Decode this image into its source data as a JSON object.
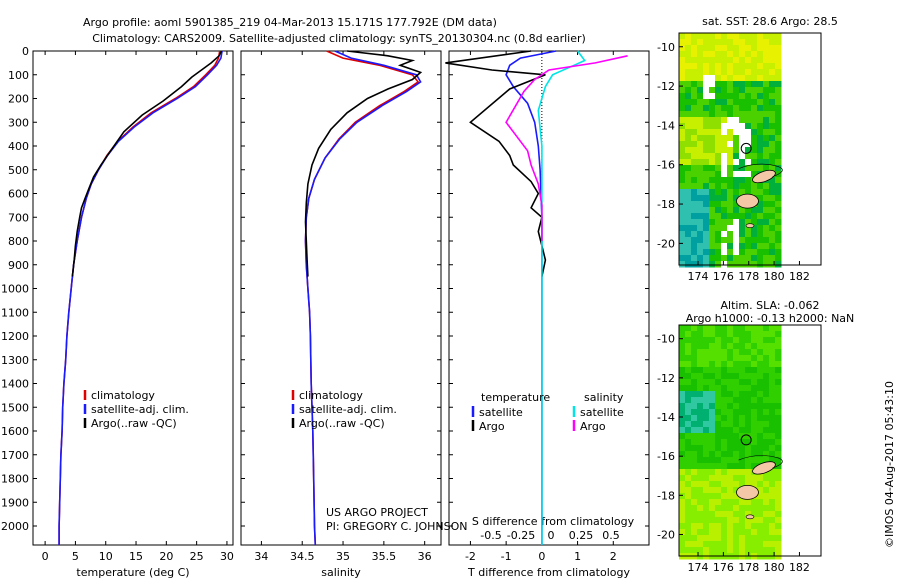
{
  "title_line1": "Argo profile: aoml 5901385_219 04-Mar-2013 15.171S 177.792E (DM data)",
  "title_line2": "Climatology: CARS2009. Satellite-adjusted climatology: synTS_20130304.nc (0.8d earlier)",
  "credit_line1": "US ARGO PROJECT",
  "credit_line2": "PI: GREGORY C. JOHNSON",
  "watermark": "©IMOS 04-Aug-2017 05:43:10",
  "colors": {
    "climatology": "#e00000",
    "satellite": "#1a1aff",
    "argo": "#000000",
    "salinity_sat": "#00e5e5",
    "salinity_argo": "#ff00ff",
    "land": "#f4c8a6"
  },
  "chart_data": [
    {
      "id": "temperature",
      "type": "line",
      "xlabel": "temperature (deg C)",
      "ylabel": "",
      "xlim": [
        -2,
        31
      ],
      "ylim": [
        2080,
        0
      ],
      "xticks": [
        0,
        5,
        10,
        15,
        20,
        25,
        30
      ],
      "yticks": [
        0,
        100,
        200,
        300,
        400,
        500,
        600,
        700,
        800,
        900,
        1000,
        1100,
        1200,
        1300,
        1400,
        1500,
        1600,
        1700,
        1800,
        1900,
        2000
      ],
      "legend": [
        "climatology",
        "satellite-adj. clim.",
        "Argo(..raw -QC)"
      ],
      "legend_position": "lower-center",
      "series": [
        {
          "name": "climatology",
          "color": "#e00000",
          "points": [
            [
              28.8,
              0
            ],
            [
              28.6,
              30
            ],
            [
              28.0,
              60
            ],
            [
              26.5,
              100
            ],
            [
              24.5,
              150
            ],
            [
              21.5,
              200
            ],
            [
              17.5,
              260
            ],
            [
              14.5,
              320
            ],
            [
              12.0,
              380
            ],
            [
              10.2,
              440
            ],
            [
              8.8,
              500
            ],
            [
              7.6,
              560
            ],
            [
              6.8,
              620
            ],
            [
              6.0,
              700
            ],
            [
              5.3,
              800
            ],
            [
              4.7,
              900
            ],
            [
              4.3,
              1000
            ],
            [
              3.9,
              1100
            ],
            [
              3.6,
              1200
            ],
            [
              3.4,
              1300
            ],
            [
              3.1,
              1400
            ],
            [
              2.9,
              1500
            ],
            [
              2.8,
              1600
            ],
            [
              2.6,
              1700
            ],
            [
              2.5,
              1800
            ],
            [
              2.4,
              1900
            ],
            [
              2.3,
              2000
            ],
            [
              2.3,
              2080
            ]
          ]
        },
        {
          "name": "satellite-adj. clim.",
          "color": "#1a1aff",
          "points": [
            [
              29.2,
              0
            ],
            [
              29.0,
              30
            ],
            [
              28.3,
              60
            ],
            [
              26.8,
              100
            ],
            [
              24.8,
              150
            ],
            [
              21.8,
              200
            ],
            [
              17.8,
              260
            ],
            [
              14.7,
              320
            ],
            [
              12.1,
              380
            ],
            [
              10.3,
              440
            ],
            [
              8.8,
              500
            ],
            [
              7.6,
              560
            ],
            [
              6.8,
              620
            ],
            [
              6.0,
              700
            ],
            [
              5.3,
              800
            ],
            [
              4.7,
              900
            ],
            [
              4.3,
              1000
            ],
            [
              3.9,
              1100
            ],
            [
              3.6,
              1200
            ],
            [
              3.4,
              1300
            ],
            [
              3.1,
              1400
            ],
            [
              2.9,
              1500
            ],
            [
              2.8,
              1600
            ],
            [
              2.6,
              1700
            ],
            [
              2.5,
              1800
            ],
            [
              2.4,
              1900
            ],
            [
              2.3,
              2000
            ],
            [
              2.3,
              2080
            ]
          ]
        },
        {
          "name": "Argo(..raw -QC)",
          "color": "#000000",
          "points": [
            [
              29.1,
              0
            ],
            [
              28.7,
              20
            ],
            [
              27.4,
              50
            ],
            [
              25.8,
              80
            ],
            [
              24.2,
              110
            ],
            [
              22.5,
              150
            ],
            [
              19.5,
              210
            ],
            [
              16.0,
              270
            ],
            [
              13.0,
              340
            ],
            [
              10.8,
              420
            ],
            [
              9.2,
              480
            ],
            [
              8.0,
              530
            ],
            [
              7.2,
              580
            ],
            [
              6.6,
              620
            ],
            [
              6.0,
              660
            ],
            [
              5.7,
              700
            ],
            [
              5.3,
              760
            ],
            [
              5.0,
              820
            ],
            [
              4.8,
              880
            ],
            [
              4.5,
              950
            ]
          ]
        }
      ]
    },
    {
      "id": "salinity",
      "type": "line",
      "xlabel": "salinity",
      "ylabel": "",
      "xlim": [
        33.75,
        36.2
      ],
      "ylim": [
        2080,
        0
      ],
      "xticks": [
        34,
        34.5,
        35,
        35.5,
        36
      ],
      "legend": [
        "climatology",
        "satellite-adj. clim.",
        "Argo(..raw -QC)"
      ],
      "legend_position": "lower-center",
      "series": [
        {
          "name": "climatology",
          "color": "#e00000",
          "points": [
            [
              34.8,
              0
            ],
            [
              35.0,
              30
            ],
            [
              35.45,
              60
            ],
            [
              35.85,
              100
            ],
            [
              35.92,
              130
            ],
            [
              35.75,
              170
            ],
            [
              35.45,
              230
            ],
            [
              35.15,
              300
            ],
            [
              34.95,
              370
            ],
            [
              34.78,
              450
            ],
            [
              34.65,
              540
            ],
            [
              34.58,
              620
            ],
            [
              34.55,
              700
            ],
            [
              34.54,
              800
            ],
            [
              34.55,
              900
            ],
            [
              34.57,
              1000
            ],
            [
              34.59,
              1100
            ],
            [
              34.6,
              1200
            ],
            [
              34.61,
              1400
            ],
            [
              34.63,
              1600
            ],
            [
              34.64,
              1800
            ],
            [
              34.65,
              2000
            ],
            [
              34.66,
              2080
            ]
          ]
        },
        {
          "name": "satellite-adj. clim.",
          "color": "#1a1aff",
          "points": [
            [
              34.9,
              0
            ],
            [
              35.1,
              30
            ],
            [
              35.5,
              60
            ],
            [
              35.9,
              100
            ],
            [
              35.95,
              130
            ],
            [
              35.78,
              170
            ],
            [
              35.48,
              230
            ],
            [
              35.17,
              300
            ],
            [
              34.96,
              370
            ],
            [
              34.78,
              450
            ],
            [
              34.65,
              540
            ],
            [
              34.58,
              620
            ],
            [
              34.55,
              700
            ],
            [
              34.54,
              800
            ],
            [
              34.55,
              900
            ],
            [
              34.57,
              1000
            ],
            [
              34.59,
              1100
            ],
            [
              34.6,
              1200
            ],
            [
              34.61,
              1400
            ],
            [
              34.63,
              1600
            ],
            [
              34.64,
              1800
            ],
            [
              34.65,
              2000
            ],
            [
              34.66,
              2080
            ]
          ]
        },
        {
          "name": "Argo(..raw -QC)",
          "color": "#000000",
          "points": [
            [
              35.05,
              0
            ],
            [
              35.55,
              20
            ],
            [
              35.85,
              40
            ],
            [
              35.7,
              60
            ],
            [
              35.95,
              90
            ],
            [
              35.85,
              120
            ],
            [
              35.55,
              160
            ],
            [
              35.3,
              200
            ],
            [
              35.05,
              260
            ],
            [
              34.85,
              330
            ],
            [
              34.7,
              410
            ],
            [
              34.62,
              480
            ],
            [
              34.57,
              560
            ],
            [
              34.55,
              640
            ],
            [
              34.54,
              720
            ],
            [
              34.55,
              800
            ],
            [
              34.56,
              880
            ],
            [
              34.57,
              950
            ]
          ]
        }
      ]
    },
    {
      "id": "difference",
      "type": "line",
      "xlabel": "T difference from climatology",
      "xlabel_top": "S difference from climatology",
      "ylabel": "",
      "xlim": [
        -2.6,
        3.0
      ],
      "ylim": [
        2080,
        0
      ],
      "xticks": [
        -2,
        -1,
        0,
        1,
        2
      ],
      "sticks_labels": [
        "-0.5",
        "-0.25",
        "0",
        "0.25",
        "0.5"
      ],
      "legend_temperature_title": "temperature",
      "legend_salinity_title": "salinity",
      "legend_items": [
        "satellite",
        "Argo",
        "satellite",
        "Argo"
      ],
      "legend_position": "lower-center",
      "series": [
        {
          "name": "satellite",
          "color": "#1a1aff",
          "points": [
            [
              0.4,
              0
            ],
            [
              -0.6,
              30
            ],
            [
              -0.9,
              60
            ],
            [
              -1.0,
              100
            ],
            [
              -0.8,
              150
            ],
            [
              -0.4,
              220
            ],
            [
              -0.2,
              300
            ],
            [
              -0.1,
              400
            ],
            [
              -0.05,
              500
            ],
            [
              0,
              700
            ],
            [
              0,
              1000
            ],
            [
              0,
              1500
            ],
            [
              0,
              2080
            ]
          ]
        },
        {
          "name": "Argo",
          "color": "#000000",
          "points": [
            [
              -0.3,
              0
            ],
            [
              -2.7,
              50
            ],
            [
              -1.4,
              80
            ],
            [
              0.1,
              100
            ],
            [
              -0.9,
              160
            ],
            [
              -2.0,
              300
            ],
            [
              -1.2,
              380
            ],
            [
              -0.9,
              440
            ],
            [
              -0.8,
              480
            ],
            [
              -0.3,
              550
            ],
            [
              -0.1,
              600
            ],
            [
              -0.3,
              660
            ],
            [
              0,
              700
            ],
            [
              -0.1,
              760
            ],
            [
              0,
              820
            ],
            [
              0.1,
              880
            ],
            [
              0,
              950
            ]
          ]
        },
        {
          "name": "satellite",
          "color": "#00e5e5",
          "points": [
            [
              1.0,
              0
            ],
            [
              1.2,
              40
            ],
            [
              0.9,
              60
            ],
            [
              0.3,
              100
            ],
            [
              0.1,
              150
            ],
            [
              -0.1,
              250
            ],
            [
              0,
              400
            ],
            [
              0,
              600
            ],
            [
              0,
              1000
            ],
            [
              0,
              2080
            ]
          ]
        },
        {
          "name": "Argo",
          "color": "#ff00ff",
          "points": [
            [
              2.4,
              20
            ],
            [
              1.5,
              50
            ],
            [
              0.2,
              80
            ],
            [
              -0.2,
              120
            ],
            [
              -0.5,
              170
            ],
            [
              -1.0,
              300
            ],
            [
              -0.4,
              420
            ],
            [
              -0.3,
              480
            ],
            [
              -0.1,
              560
            ],
            [
              0,
              650
            ],
            [
              0,
              800
            ]
          ]
        }
      ]
    }
  ],
  "maps": [
    {
      "id": "sst_map",
      "title_line1": "sat. SST: 28.6 Argo: 28.5",
      "title_line2": "",
      "xticks": [
        174,
        176,
        178,
        180,
        182
      ],
      "yticks": [
        -10,
        -12,
        -14,
        -16,
        -18,
        -20
      ],
      "xlim": [
        172.5,
        183.7
      ],
      "ylim": [
        -21.1,
        -9.3
      ],
      "float_position": [
        177.8,
        -15.17
      ],
      "palette": [
        "#8fe000",
        "#c7f000",
        "#e8f200",
        "#4bd000",
        "#18c000",
        "#00b03a",
        "#00a0a0",
        "#30c0b0"
      ]
    },
    {
      "id": "sla_map",
      "title_line1": "Altim. SLA: -0.062",
      "title_line2": "Argo h1000: -0.13 h2000: NaN",
      "xticks": [
        174,
        176,
        178,
        180,
        182
      ],
      "yticks": [
        -10,
        -12,
        -14,
        -16,
        -18,
        -20
      ],
      "xlim": [
        172.5,
        183.7
      ],
      "ylim": [
        -21.1,
        -9.3
      ],
      "float_position": [
        177.8,
        -15.17
      ],
      "palette": [
        "#30d000",
        "#55e000",
        "#88ee00",
        "#b8f000",
        "#18c000",
        "#00b070"
      ]
    }
  ]
}
